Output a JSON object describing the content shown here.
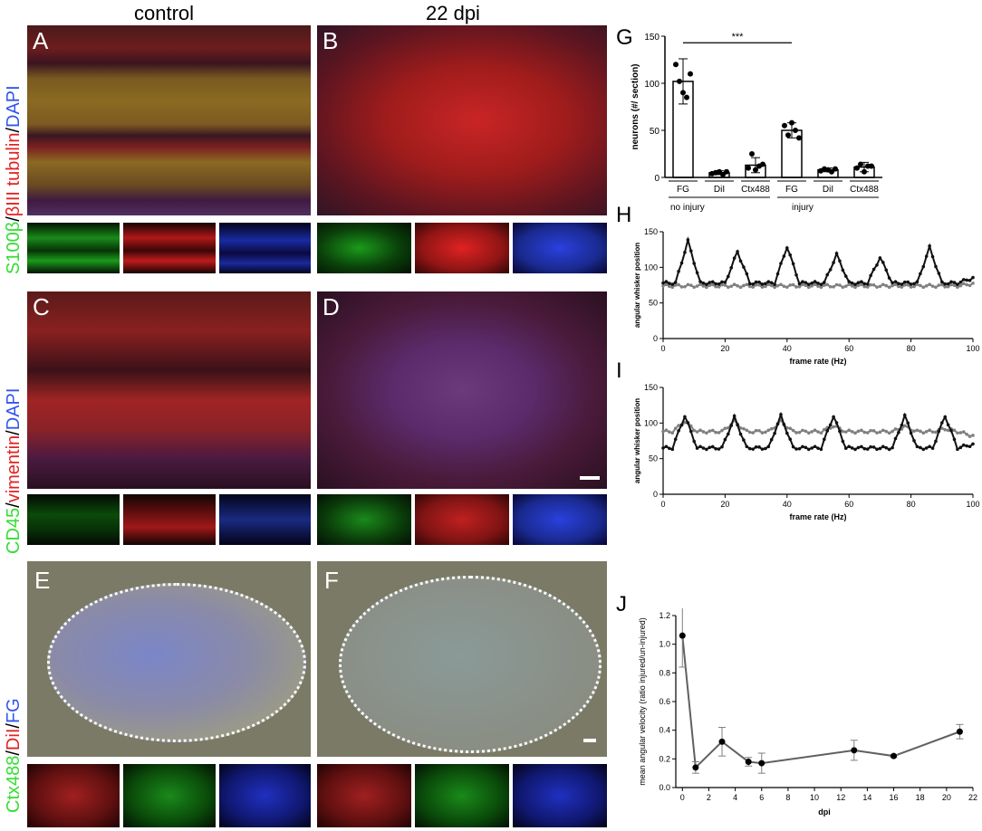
{
  "columns": {
    "left": "control",
    "right": "22 dpi"
  },
  "panel_letters": {
    "A": "A",
    "B": "B",
    "C": "C",
    "D": "D",
    "E": "E",
    "F": "F"
  },
  "row_labels": {
    "row1": [
      {
        "text": "S100β",
        "color": "#33dd33"
      },
      {
        "text": "/",
        "color": "#000000"
      },
      {
        "text": "βIII tubulin",
        "color": "#e22222"
      },
      {
        "text": "/",
        "color": "#000000"
      },
      {
        "text": "DAPI",
        "color": "#3355ee"
      }
    ],
    "row2": [
      {
        "text": "CD45",
        "color": "#33dd33"
      },
      {
        "text": "/",
        "color": "#000000"
      },
      {
        "text": "vimentin",
        "color": "#e22222"
      },
      {
        "text": "/",
        "color": "#000000"
      },
      {
        "text": "DAPI",
        "color": "#3355ee"
      }
    ],
    "row3": [
      {
        "text": "Ctx488",
        "color": "#33dd33"
      },
      {
        "text": "/",
        "color": "#000000"
      },
      {
        "text": "DiI",
        "color": "#e22222"
      },
      {
        "text": "/",
        "color": "#000000"
      },
      {
        "text": "FG",
        "color": "#3355ee"
      }
    ]
  },
  "chart_data": [
    {
      "panel": "G",
      "type": "bar",
      "ylabel": "neurons (#/ section)",
      "ylim": [
        0,
        150
      ],
      "yticks": [
        0,
        50,
        100,
        150
      ],
      "categories": [
        "FG",
        "DiI",
        "Ctx488",
        "FG",
        "DiI",
        "Ctx488"
      ],
      "groups": [
        "no injury",
        "injury"
      ],
      "values": [
        102,
        5,
        13,
        50,
        8,
        11
      ],
      "errors": [
        24,
        2,
        8,
        8,
        2,
        5
      ],
      "points": [
        [
          120,
          102,
          90,
          85,
          110
        ],
        [
          4,
          5,
          6,
          3,
          6
        ],
        [
          10,
          25,
          8,
          12,
          14
        ],
        [
          55,
          45,
          58,
          50,
          42
        ],
        [
          7,
          9,
          8,
          6,
          9
        ],
        [
          10,
          14,
          6,
          12,
          12
        ]
      ],
      "significance": "***"
    },
    {
      "panel": "H",
      "type": "line",
      "xlabel": "frame rate (Hz)",
      "ylabel": "angular whisker position",
      "xlim": [
        0,
        100
      ],
      "ylim": [
        0,
        150
      ],
      "xticks": [
        0,
        20,
        40,
        60,
        80,
        100
      ],
      "yticks": [
        0,
        50,
        100,
        150
      ],
      "series": [
        {
          "color": "#111111",
          "peaks": [
            8,
            24,
            40,
            56,
            70,
            86
          ],
          "peak_values": [
            137,
            122,
            129,
            118,
            114,
            128
          ],
          "baseline": 78,
          "end_value": 85
        },
        {
          "color": "#808080",
          "baseline": 74,
          "end_value": 77
        }
      ]
    },
    {
      "panel": "I",
      "type": "line",
      "xlabel": "frame rate (Hz)",
      "ylabel": "angular whisker position",
      "xlim": [
        0,
        100
      ],
      "ylim": [
        0,
        150
      ],
      "xticks": [
        0,
        20,
        40,
        60,
        80,
        100
      ],
      "yticks": [
        0,
        50,
        100,
        150
      ],
      "series": [
        {
          "color": "#111111",
          "peaks": [
            7,
            23,
            38,
            55,
            78,
            91
          ],
          "peak_values": [
            110,
            108,
            110,
            110,
            110,
            110
          ],
          "baseline": 65,
          "end_value": 70
        },
        {
          "color": "#808080",
          "peaks": [
            7,
            23,
            38,
            55,
            78,
            91
          ],
          "peak_values": [
            102,
            102,
            102,
            96,
            95,
            92
          ],
          "baseline": 88,
          "end_value": 82
        }
      ]
    },
    {
      "panel": "J",
      "type": "line",
      "xlabel": "dpi",
      "ylabel": "mean angular velocity (ratio injured/un-injured)",
      "xlim": [
        -0.5,
        22
      ],
      "ylim": [
        0,
        1.2
      ],
      "xticks": [
        0,
        2,
        4,
        6,
        8,
        10,
        12,
        14,
        16,
        18,
        20,
        22
      ],
      "yticks": [
        0.0,
        0.2,
        0.4,
        0.6,
        0.8,
        1.0,
        1.2
      ],
      "x": [
        0,
        1,
        3,
        5,
        6,
        13,
        16,
        21
      ],
      "y": [
        1.06,
        0.14,
        0.32,
        0.18,
        0.17,
        0.26,
        0.22,
        0.39
      ],
      "errors": [
        0.22,
        0.04,
        0.1,
        0.03,
        0.07,
        0.07,
        0.01,
        0.05
      ]
    }
  ]
}
